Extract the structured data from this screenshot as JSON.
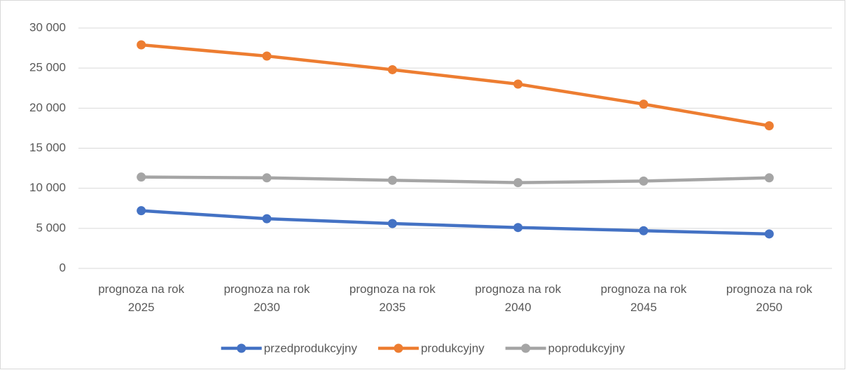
{
  "chart_data": {
    "type": "line",
    "categories": [
      "prognoza na rok 2025",
      "prognoza na rok 2030",
      "prognoza na rok 2035",
      "prognoza na rok 2040",
      "prognoza na rok 2045",
      "prognoza na rok 2050"
    ],
    "series": [
      {
        "name": "przedprodukcyjny",
        "color": "#4472c4",
        "values": [
          7200,
          6200,
          5600,
          5100,
          4700,
          4300
        ]
      },
      {
        "name": "produkcyjny",
        "color": "#ed7d31",
        "values": [
          27900,
          26500,
          24800,
          23000,
          20500,
          17800
        ]
      },
      {
        "name": "poprodukcyjny",
        "color": "#a5a5a5",
        "values": [
          11400,
          11300,
          11000,
          10700,
          10900,
          11300
        ]
      }
    ],
    "ylim": [
      0,
      30000
    ],
    "yticks": [
      0,
      {
        "value": 5000,
        "label": "5 000"
      },
      {
        "value": 10000,
        "label": "10 000"
      },
      {
        "value": 15000,
        "label": "15 000"
      },
      {
        "value": 20000,
        "label": "20 000"
      },
      {
        "value": 25000,
        "label": "25 000"
      },
      {
        "value": 30000,
        "label": "30 000"
      }
    ],
    "grid": true,
    "legend": "bottom"
  }
}
